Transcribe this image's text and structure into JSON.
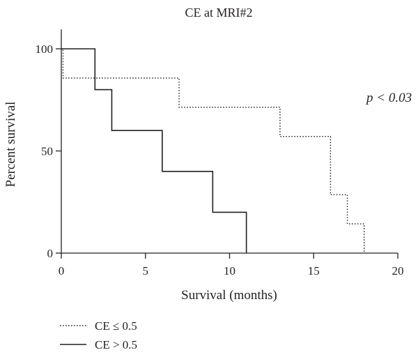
{
  "chart_data": {
    "type": "line",
    "title": "CE at MRI#2",
    "xlabel": "Survival (months)",
    "ylabel": "Percent survival",
    "xlim": [
      0,
      20
    ],
    "ylim": [
      0,
      100
    ],
    "xticks": [
      0,
      5,
      10,
      15,
      20
    ],
    "yticks": [
      0,
      50,
      100
    ],
    "grid": false,
    "legend_position": "bottom-left",
    "annotation": "p < 0.03",
    "series": [
      {
        "name": "CE ≤ 0.5",
        "style": "dotted",
        "color": "#231f20",
        "steps": [
          [
            0,
            100
          ],
          [
            0.1,
            85.7
          ],
          [
            7,
            71.4
          ],
          [
            13,
            57.1
          ],
          [
            16,
            28.6
          ],
          [
            17,
            14.3
          ],
          [
            18,
            0
          ]
        ]
      },
      {
        "name": "CE > 0.5",
        "style": "solid",
        "color": "#231f20",
        "steps": [
          [
            0,
            100
          ],
          [
            2,
            80
          ],
          [
            3,
            60
          ],
          [
            6,
            40
          ],
          [
            9,
            20
          ],
          [
            11,
            0
          ]
        ]
      }
    ]
  }
}
